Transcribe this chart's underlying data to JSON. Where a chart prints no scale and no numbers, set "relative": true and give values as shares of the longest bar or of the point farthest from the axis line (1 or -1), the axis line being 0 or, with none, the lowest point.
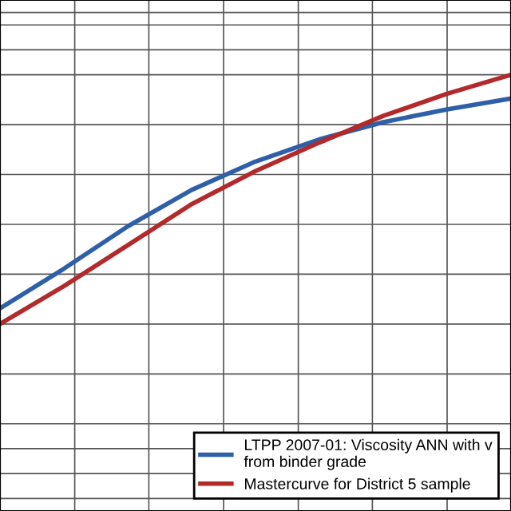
{
  "chart_data": {
    "type": "line",
    "relative": true,
    "categories": [
      null,
      null,
      null,
      null,
      null,
      null,
      null,
      null,
      null
    ],
    "series": [
      {
        "name": "LTPP 2007-01: Viscosity ANN with v\nfrom binder grade",
        "color": "#2e5fa8",
        "values": [
          0.063,
          0.222,
          0.392,
          0.538,
          0.652,
          0.741,
          0.81,
          0.861,
          0.905
        ]
      },
      {
        "name": "Mastercurve for District 5 sample",
        "color": "#b22a2a",
        "values": [
          0,
          0.152,
          0.316,
          0.481,
          0.614,
          0.728,
          0.835,
          0.924,
          1
        ]
      }
    ],
    "grid": true,
    "legend": "bottom right",
    "marker": "none",
    "line_style": "solid"
  }
}
